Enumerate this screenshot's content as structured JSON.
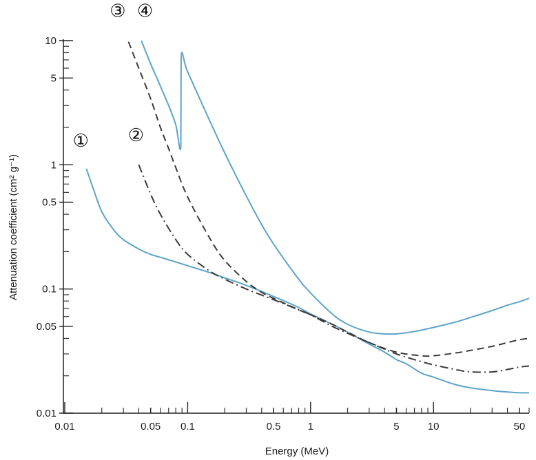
{
  "chart_data": {
    "type": "line",
    "title": "",
    "xlabel": "Energy (MeV)",
    "ylabel": "Attenuation coefficient (cm² g⁻¹)",
    "xscale": "log",
    "yscale": "log",
    "xlim": [
      0.01,
      60
    ],
    "ylim": [
      0.01,
      10
    ],
    "grid": false,
    "x_ticks": [
      {
        "value": 0.01,
        "label": "0.01"
      },
      {
        "value": 0.05,
        "label": "0.05"
      },
      {
        "value": 0.1,
        "label": "0.1"
      },
      {
        "value": 0.5,
        "label": "0.5"
      },
      {
        "value": 1,
        "label": "1"
      },
      {
        "value": 5,
        "label": "5"
      },
      {
        "value": 10,
        "label": "10"
      },
      {
        "value": 50,
        "label": "50"
      }
    ],
    "y_ticks": [
      {
        "value": 10,
        "label": "10"
      },
      {
        "value": 5,
        "label": "5"
      },
      {
        "value": 1,
        "label": "1"
      },
      {
        "value": 0.5,
        "label": "0.5"
      },
      {
        "value": 0.1,
        "label": "0.1"
      },
      {
        "value": 0.05,
        "label": "0.05"
      },
      {
        "value": 0.01,
        "label": "0.01"
      }
    ],
    "colors": {
      "blue": "#5ba3c9",
      "dark": "#3a3a3a"
    },
    "series": [
      {
        "marker": "①",
        "style": "solid",
        "color": "#5ba3c9",
        "points": [
          [
            0.015,
            0.93
          ],
          [
            0.017,
            0.65
          ],
          [
            0.02,
            0.42
          ],
          [
            0.025,
            0.3
          ],
          [
            0.03,
            0.25
          ],
          [
            0.04,
            0.21
          ],
          [
            0.05,
            0.19
          ],
          [
            0.06,
            0.18
          ],
          [
            0.08,
            0.165
          ],
          [
            0.1,
            0.154
          ],
          [
            0.15,
            0.136
          ],
          [
            0.2,
            0.123
          ],
          [
            0.3,
            0.107
          ],
          [
            0.5,
            0.087
          ],
          [
            0.8,
            0.071
          ],
          [
            1,
            0.063
          ],
          [
            1.5,
            0.052
          ],
          [
            2,
            0.045
          ],
          [
            3,
            0.036
          ],
          [
            4,
            0.031
          ],
          [
            5,
            0.027
          ],
          [
            6,
            0.025
          ],
          [
            8,
            0.021
          ],
          [
            10,
            0.0195
          ],
          [
            15,
            0.017
          ],
          [
            20,
            0.016
          ],
          [
            30,
            0.0152
          ],
          [
            40,
            0.0148
          ],
          [
            50,
            0.0146
          ],
          [
            60,
            0.0146
          ]
        ]
      },
      {
        "marker": "②",
        "style": "dash-dot",
        "color": "#3a3a3a",
        "points": [
          [
            0.04,
            1.0
          ],
          [
            0.05,
            0.58
          ],
          [
            0.06,
            0.4
          ],
          [
            0.08,
            0.25
          ],
          [
            0.1,
            0.19
          ],
          [
            0.15,
            0.14
          ],
          [
            0.2,
            0.12
          ],
          [
            0.3,
            0.1
          ],
          [
            0.5,
            0.082
          ],
          [
            0.8,
            0.068
          ],
          [
            1,
            0.062
          ],
          [
            1.5,
            0.05
          ],
          [
            2,
            0.044
          ],
          [
            3,
            0.037
          ],
          [
            5,
            0.03
          ],
          [
            8,
            0.026
          ],
          [
            10,
            0.0245
          ],
          [
            15,
            0.0225
          ],
          [
            20,
            0.0215
          ],
          [
            30,
            0.0215
          ],
          [
            40,
            0.0225
          ],
          [
            50,
            0.0235
          ],
          [
            60,
            0.024
          ]
        ]
      },
      {
        "marker": "③",
        "style": "dashed",
        "color": "#3a3a3a",
        "points": [
          [
            0.033,
            9.8
          ],
          [
            0.04,
            6.0
          ],
          [
            0.05,
            3.4
          ],
          [
            0.06,
            2.0
          ],
          [
            0.07,
            1.35
          ],
          [
            0.08,
            0.95
          ],
          [
            0.1,
            0.55
          ],
          [
            0.15,
            0.26
          ],
          [
            0.2,
            0.17
          ],
          [
            0.3,
            0.115
          ],
          [
            0.4,
            0.094
          ],
          [
            0.5,
            0.084
          ],
          [
            0.8,
            0.068
          ],
          [
            1,
            0.062
          ],
          [
            1.5,
            0.052
          ],
          [
            2,
            0.045
          ],
          [
            3,
            0.037
          ],
          [
            5,
            0.031
          ],
          [
            8,
            0.029
          ],
          [
            10,
            0.029
          ],
          [
            15,
            0.0305
          ],
          [
            20,
            0.032
          ],
          [
            30,
            0.0345
          ],
          [
            40,
            0.037
          ],
          [
            50,
            0.039
          ],
          [
            60,
            0.04
          ]
        ]
      },
      {
        "marker": "④",
        "style": "solid",
        "color": "#5ba3c9",
        "points": [
          [
            0.042,
            10.0
          ],
          [
            0.05,
            6.5
          ],
          [
            0.06,
            4.3
          ],
          [
            0.07,
            3.0
          ],
          [
            0.08,
            2.1
          ],
          [
            0.088,
            1.4
          ],
          [
            0.0885,
            7.4
          ],
          [
            0.1,
            5.6
          ],
          [
            0.15,
            2.3
          ],
          [
            0.2,
            1.25
          ],
          [
            0.3,
            0.56
          ],
          [
            0.4,
            0.33
          ],
          [
            0.5,
            0.23
          ],
          [
            0.8,
            0.12
          ],
          [
            1,
            0.093
          ],
          [
            1.5,
            0.063
          ],
          [
            2,
            0.052
          ],
          [
            3,
            0.045
          ],
          [
            4,
            0.0435
          ],
          [
            5,
            0.0435
          ],
          [
            7,
            0.0455
          ],
          [
            10,
            0.049
          ],
          [
            15,
            0.054
          ],
          [
            20,
            0.059
          ],
          [
            30,
            0.067
          ],
          [
            40,
            0.074
          ],
          [
            50,
            0.079
          ],
          [
            60,
            0.084
          ]
        ]
      }
    ],
    "annotations": [
      {
        "label": "①",
        "x": 0.0135,
        "y": 1.4
      },
      {
        "label": "②",
        "x": 0.038,
        "y": 1.55
      },
      {
        "label": "③",
        "x": 0.027,
        "y": 15.5
      },
      {
        "label": "④",
        "x": 0.045,
        "y": 15.5
      }
    ]
  }
}
